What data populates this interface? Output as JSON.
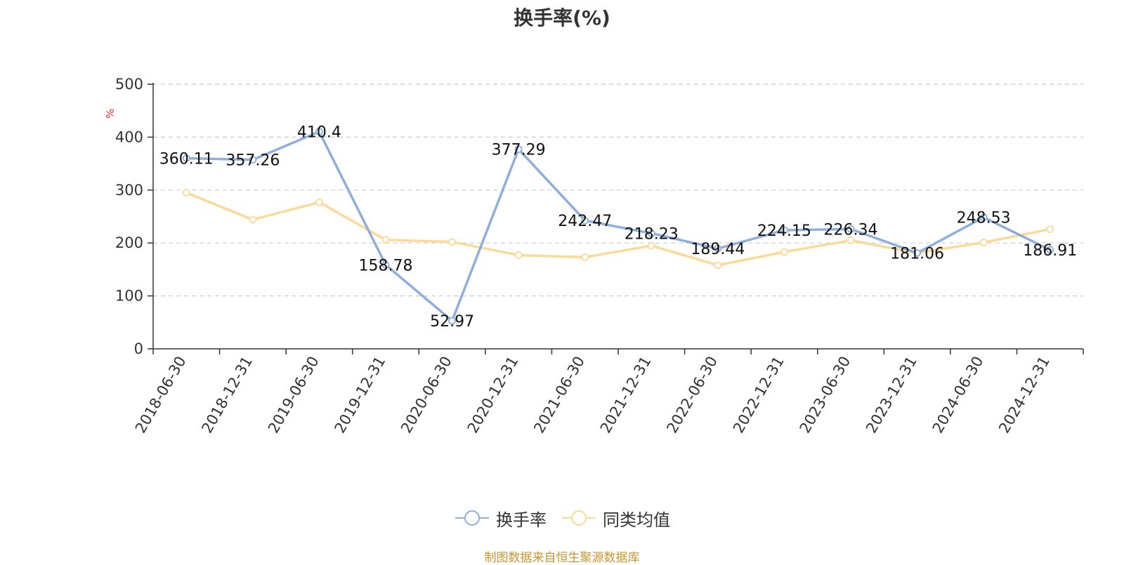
{
  "title": "换手率(%)",
  "source_note": "制图数据来自恒生聚源数据库",
  "colors": {
    "series1": "#8eaedb",
    "series2": "#fbd996",
    "ylabel": "#e03030",
    "axis": "#333333",
    "grid": "#cccccc"
  },
  "chart_data": {
    "type": "line",
    "title": "换手率(%)",
    "xlabel": "",
    "ylabel": "%",
    "ylim": [
      0,
      500
    ],
    "yticks": [
      0,
      100,
      200,
      300,
      400,
      500
    ],
    "grid": true,
    "legend_position": "bottom-center",
    "categories": [
      "2018-06-30",
      "2018-12-31",
      "2019-06-30",
      "2019-12-31",
      "2020-06-30",
      "2020-12-31",
      "2021-06-30",
      "2021-12-31",
      "2022-06-30",
      "2022-12-31",
      "2023-06-30",
      "2023-12-31",
      "2024-06-30",
      "2024-12-31"
    ],
    "series": [
      {
        "name": "换手率",
        "values": [
          360.11,
          357.26,
          410.4,
          158.78,
          52.97,
          377.29,
          242.47,
          218.23,
          189.44,
          224.15,
          226.34,
          181.06,
          248.53,
          186.91
        ],
        "labels": [
          "360.11",
          "357.26",
          "410.4",
          "158.78",
          "52.97",
          "377.29",
          "242.47",
          "218.23",
          "189.44",
          "224.15",
          "226.34",
          "181.06",
          "248.53",
          "186.91"
        ]
      },
      {
        "name": "同类均值",
        "values": [
          295,
          244,
          277,
          206,
          202,
          177,
          173,
          195,
          158,
          183,
          205,
          181,
          201,
          226
        ]
      }
    ]
  }
}
